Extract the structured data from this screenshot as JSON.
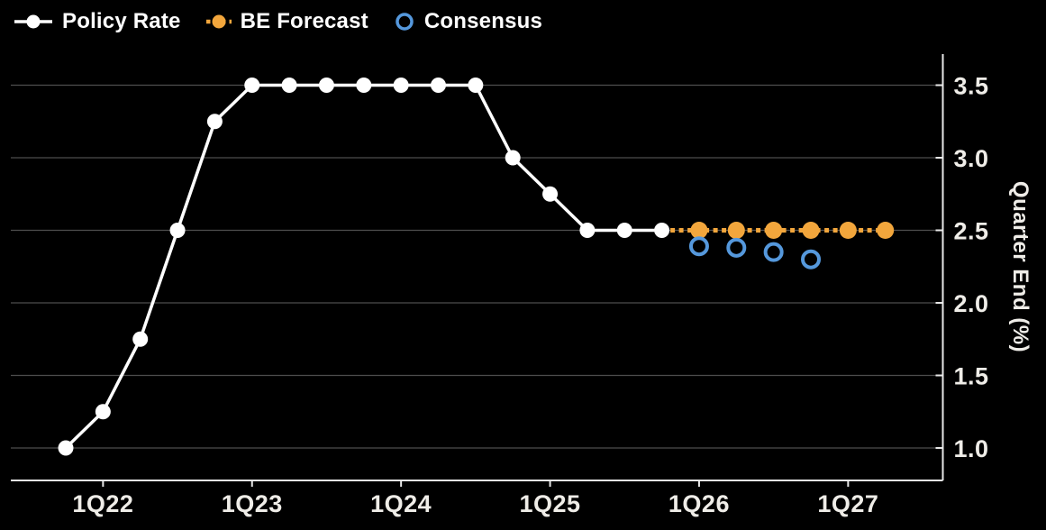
{
  "legend": [
    {
      "label": "Policy Rate"
    },
    {
      "label": "BE Forecast"
    },
    {
      "label": "Consensus"
    }
  ],
  "colors": {
    "background": "#000000",
    "grid": "#4d4d4d",
    "axis": "#e8e8e8",
    "tick_label": "#efede8",
    "policy": "#ffffff",
    "forecast": "#f2a63c",
    "consensus": "#5598dc"
  },
  "chart_data": {
    "type": "line",
    "title": "",
    "ylabel": "Quarter End (%)",
    "xlabel": "",
    "grid": "horizontal",
    "axis_side": "right",
    "legend_position": "top-left",
    "ylim": [
      0.75,
      3.75
    ],
    "yticks": [
      "3.5",
      "3.0",
      "2.5",
      "2.0",
      "1.5",
      "1.0"
    ],
    "x_start": "4Q21",
    "x_tick_labels": [
      "1Q22",
      "1Q23",
      "1Q24",
      "1Q25",
      "1Q26",
      "1Q27"
    ],
    "series": [
      {
        "name": "Policy Rate",
        "style": "solid-line-filled-dots",
        "x": [
          "4Q21",
          "1Q22",
          "2Q22",
          "3Q22",
          "4Q22",
          "1Q23",
          "2Q23",
          "3Q23",
          "4Q23",
          "1Q24",
          "2Q24",
          "3Q24",
          "4Q24",
          "1Q25",
          "2Q25",
          "3Q25",
          "4Q25"
        ],
        "values": [
          1.0,
          1.25,
          1.75,
          2.5,
          3.25,
          3.5,
          3.5,
          3.5,
          3.5,
          3.5,
          3.5,
          3.5,
          3.0,
          2.75,
          2.5,
          2.5,
          2.5
        ]
      },
      {
        "name": "BE Forecast",
        "style": "dotted-line-filled-dots",
        "line_from": "4Q25",
        "x": [
          "1Q26",
          "2Q26",
          "3Q26",
          "4Q26",
          "1Q27",
          "2Q27"
        ],
        "values": [
          2.5,
          2.5,
          2.5,
          2.5,
          2.5,
          2.5
        ]
      },
      {
        "name": "Consensus",
        "style": "open-circles",
        "x": [
          "1Q26",
          "2Q26",
          "3Q26",
          "4Q26"
        ],
        "values": [
          2.39,
          2.38,
          2.35,
          2.3
        ]
      }
    ]
  }
}
